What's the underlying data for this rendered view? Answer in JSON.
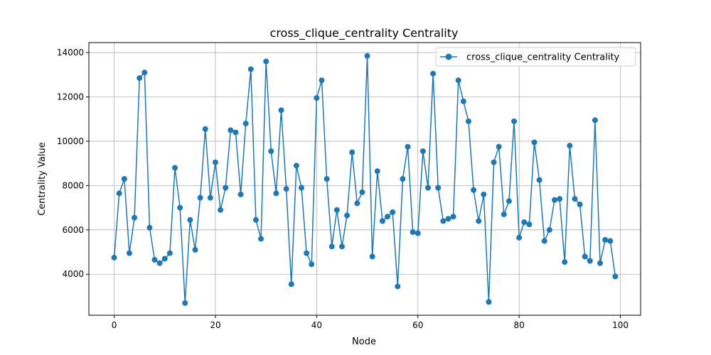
{
  "chart_data": {
    "type": "line",
    "title": "cross_clique_centrality Centrality",
    "xlabel": "Node",
    "ylabel": "Centrality Value",
    "xlim": [
      -5,
      104
    ],
    "ylim": [
      2150,
      14450
    ],
    "xticks": [
      0,
      20,
      40,
      60,
      80,
      100
    ],
    "yticks": [
      4000,
      6000,
      8000,
      10000,
      12000,
      14000
    ],
    "grid": true,
    "legend_position": "top-right",
    "color": "#1f77b4",
    "series": [
      {
        "name": "cross_clique_centrality Centrality",
        "x": [
          0,
          1,
          2,
          3,
          4,
          5,
          6,
          7,
          8,
          9,
          10,
          11,
          12,
          13,
          14,
          15,
          16,
          17,
          18,
          19,
          20,
          21,
          22,
          23,
          24,
          25,
          26,
          27,
          28,
          29,
          30,
          31,
          32,
          33,
          34,
          35,
          36,
          37,
          38,
          39,
          40,
          41,
          42,
          43,
          44,
          45,
          46,
          47,
          48,
          49,
          50,
          51,
          52,
          53,
          54,
          55,
          56,
          57,
          58,
          59,
          60,
          61,
          62,
          63,
          64,
          65,
          66,
          67,
          68,
          69,
          70,
          71,
          72,
          73,
          74,
          75,
          76,
          77,
          78,
          79,
          80,
          81,
          82,
          83,
          84,
          85,
          86,
          87,
          88,
          89,
          90,
          91,
          92,
          93,
          94,
          95,
          96,
          97,
          98,
          99
        ],
        "values": [
          4750,
          7650,
          8300,
          4950,
          6550,
          12850,
          13100,
          6100,
          4650,
          4500,
          4700,
          4950,
          8800,
          7000,
          2700,
          6450,
          5100,
          7450,
          10550,
          7450,
          9050,
          6900,
          7900,
          10500,
          10400,
          7600,
          10800,
          13250,
          6450,
          5600,
          13600,
          9550,
          7650,
          11400,
          7850,
          3550,
          8900,
          7900,
          4950,
          4450,
          11950,
          12750,
          8300,
          5250,
          6900,
          5250,
          6650,
          9500,
          7200,
          7700,
          13850,
          4800,
          8650,
          6400,
          6600,
          6800,
          3450,
          8300,
          9750,
          5900,
          5850,
          9550,
          7900,
          13050,
          7900,
          6400,
          6500,
          6600,
          12750,
          11800,
          10900,
          7800,
          6400,
          7600,
          2750,
          9050,
          9750,
          6700,
          7300,
          10900,
          5650,
          6350,
          6250,
          9950,
          8250,
          5500,
          6000,
          7350,
          7400,
          4550,
          9800,
          7400,
          7150,
          4800,
          4600,
          10950,
          4500,
          5550,
          5500,
          3900
        ]
      }
    ]
  }
}
